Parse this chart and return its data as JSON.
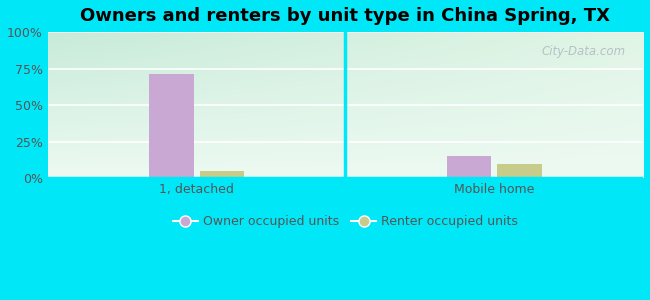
{
  "title": "Owners and renters by unit type in China Spring, TX",
  "categories": [
    "1, detached",
    "Mobile home"
  ],
  "owner_values": [
    71,
    15
  ],
  "renter_values": [
    5,
    10
  ],
  "owner_color": "#c9a8d4",
  "renter_color": "#c8cc8a",
  "ylim": [
    0,
    100
  ],
  "yticks": [
    0,
    25,
    50,
    75,
    100
  ],
  "ytick_labels": [
    "0%",
    "25%",
    "50%",
    "75%",
    "100%"
  ],
  "background_outer": "#00e8f8",
  "bar_width": 0.3,
  "group_positions": [
    1,
    3
  ],
  "legend_owner": "Owner occupied units",
  "legend_renter": "Renter occupied units",
  "watermark": "City-Data.com",
  "title_fontsize": 13,
  "axis_fontsize": 9,
  "legend_fontsize": 9
}
